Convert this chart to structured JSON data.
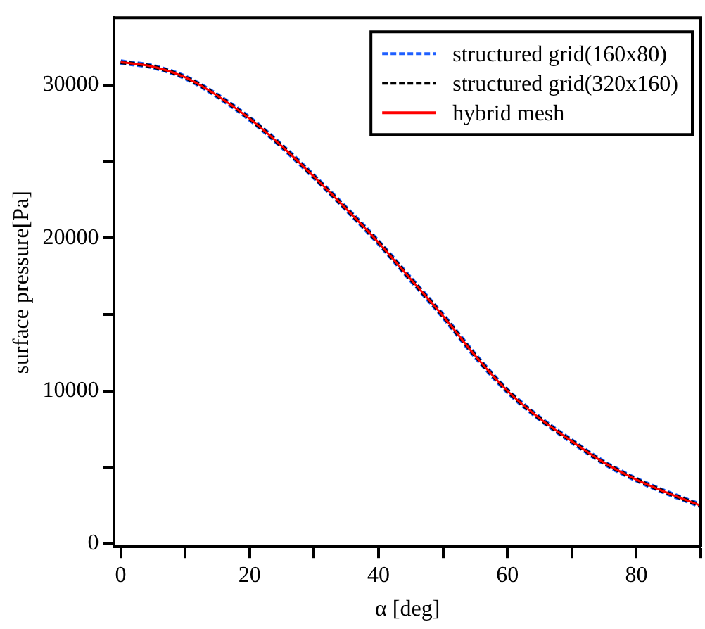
{
  "chart_data": {
    "type": "line",
    "xlabel": "α [deg]",
    "ylabel": "surface pressure[Pa]",
    "x": [
      0,
      5,
      10,
      15,
      20,
      25,
      30,
      35,
      40,
      45,
      50,
      55,
      60,
      65,
      70,
      75,
      80,
      85,
      90
    ],
    "series": [
      {
        "name": "structured grid(160x80)",
        "color": "#1f5fff",
        "line_style": "dashed",
        "values": [
          31500,
          31200,
          30500,
          29300,
          27800,
          26000,
          24000,
          21900,
          19700,
          17300,
          14900,
          12300,
          10000,
          8200,
          6700,
          5300,
          4200,
          3300,
          2500
        ]
      },
      {
        "name": "structured grid(320x160)",
        "color": "#000000",
        "line_style": "dashed",
        "values": [
          31500,
          31200,
          30500,
          29300,
          27800,
          26000,
          24000,
          21900,
          19700,
          17300,
          14900,
          12300,
          10000,
          8200,
          6700,
          5300,
          4200,
          3300,
          2500
        ]
      },
      {
        "name": "hybrid mesh",
        "color": "#ff0000",
        "line_style": "solid",
        "values": [
          31500,
          31200,
          30500,
          29300,
          27800,
          26000,
          24000,
          21900,
          19700,
          17300,
          14900,
          12300,
          10000,
          8200,
          6700,
          5300,
          4200,
          3300,
          2500
        ]
      }
    ],
    "xlim": [
      -1,
      90
    ],
    "xticks": [
      0,
      {
        "value": 10,
        "label": null
      },
      20,
      {
        "value": 30,
        "label": null
      },
      40,
      {
        "value": 50,
        "label": null
      },
      60,
      {
        "value": 70,
        "label": null
      },
      80,
      {
        "value": 90,
        "label": null
      }
    ],
    "ylim": [
      -200,
      34400
    ],
    "yticks": [
      0,
      {
        "value": 5000,
        "label": null
      },
      10000,
      {
        "value": 15000,
        "label": null
      },
      20000,
      {
        "value": 25000,
        "label": null
      },
      30000
    ],
    "legend": "top right",
    "marker": "none"
  }
}
